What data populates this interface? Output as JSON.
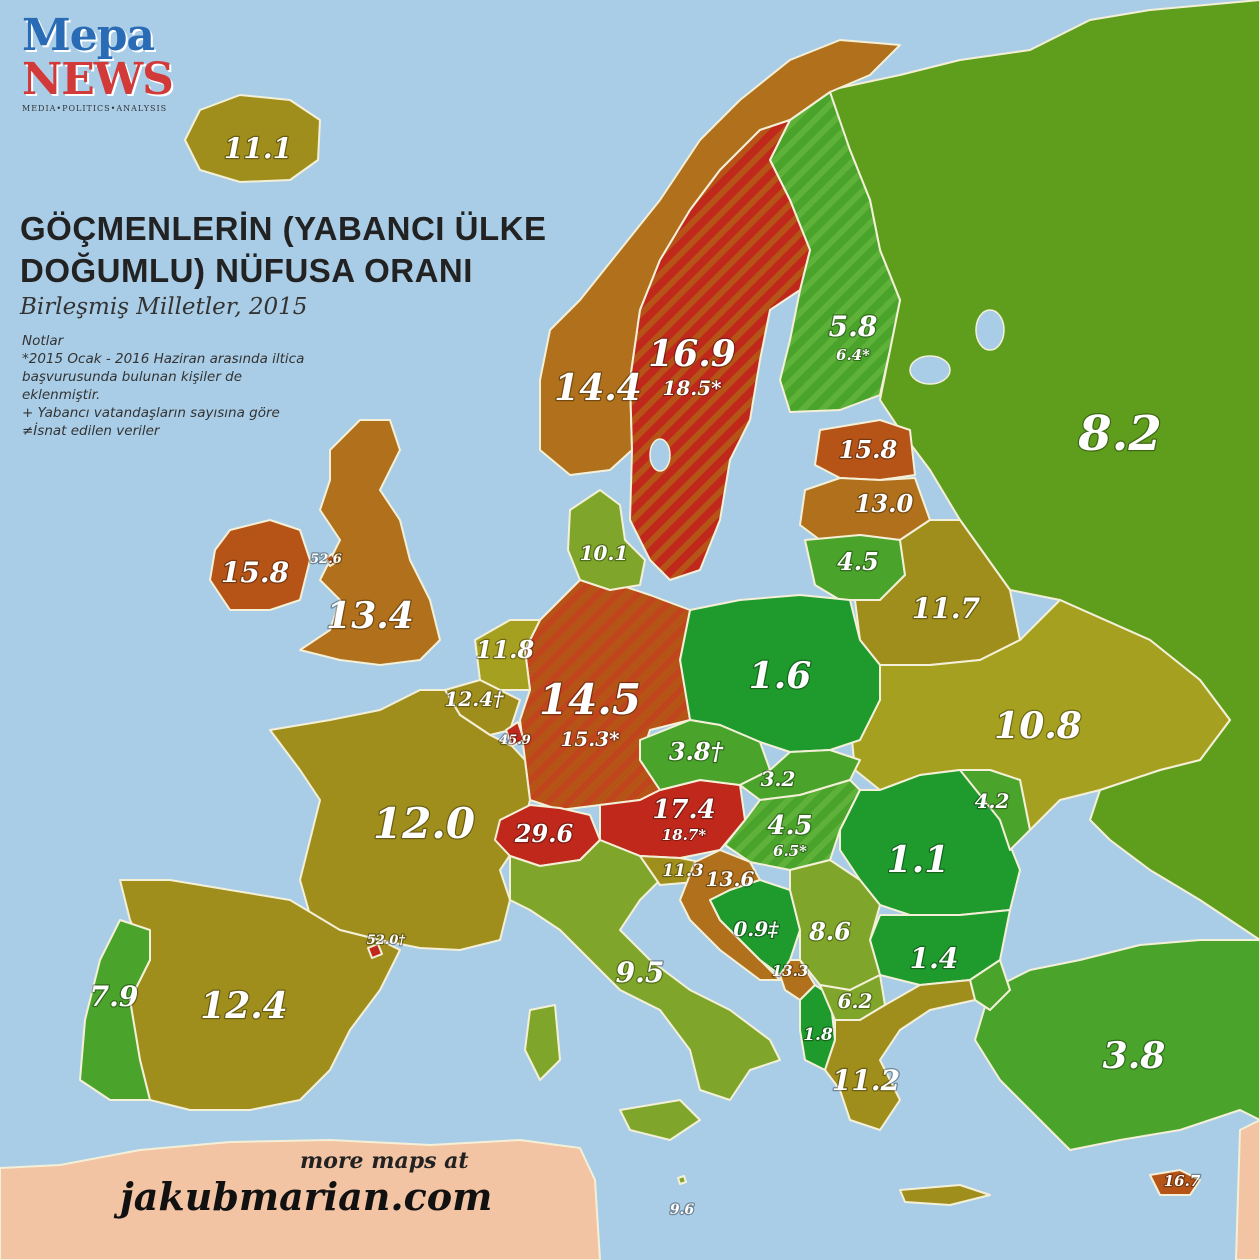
{
  "logo": {
    "line1": "Mepa",
    "line2": "NEWS",
    "tagline": "MEDIA•POLITICS•ANALYSIS"
  },
  "title": "GÖÇMENLERİN (YABANCI ÜLKE DOĞUMLU) NÜFUSA ORANI",
  "subtitle": "Birleşmiş Milletler, 2015",
  "notes": [
    "Notlar",
    "*2015 Ocak - 2016 Haziran arasında iltica başvurusunda bulunan kişiler de eklenmiştir.",
    "+ Yabancı vatandaşların sayısına göre",
    "≠İsnat edilen veriler"
  ],
  "promo": {
    "line1": "more maps at",
    "line2": "jakubmarian.com"
  },
  "colors": {
    "sea": "#a9cde6",
    "very_low": "#1f9a2c",
    "low": "#4aa32a",
    "low_mid": "#7fa62a",
    "mid": "#a08e1c",
    "mid_high": "#b0701c",
    "high": "#b65418",
    "very_high": "#c0281c",
    "africa": "#f3c4a4"
  },
  "values": {
    "iceland": "11.1",
    "norway": "14.4",
    "sweden": "16.9",
    "sweden_alt": "18.5*",
    "finland": "5.8",
    "finland_alt": "6.4*",
    "russia": "8.2",
    "estonia": "15.8",
    "latvia": "13.0",
    "lithuania": "4.5",
    "belarus": "11.7",
    "ukraine": "10.8",
    "poland": "1.6",
    "germany": "14.5",
    "germany_alt": "15.3*",
    "denmark": "10.1",
    "netherlands": "11.8",
    "belgium": "12.4†",
    "luxembourg": "45.9",
    "uk": "13.4",
    "ireland": "15.8",
    "isle_of_man": "52.6",
    "france": "12.0",
    "spain": "12.4",
    "portugal": "7.9",
    "andorra": "52.0†",
    "switzerland": "29.6",
    "austria": "17.4",
    "austria_alt": "18.7*",
    "czechia": "3.8†",
    "slovakia": "3.2",
    "hungary": "4.5",
    "hungary_alt": "6.5*",
    "romania": "1.1",
    "moldova": "4.2",
    "bulgaria": "1.4",
    "italy": "9.5",
    "slovenia": "11.3",
    "croatia": "13.6",
    "bosnia": "0.9‡",
    "serbia": "8.6",
    "montenegro": "13.3",
    "albania": "1.8",
    "macedonia": "6.2",
    "greece": "11.2",
    "turkey": "3.8",
    "cyprus": "16.7",
    "malta": "9.6"
  }
}
